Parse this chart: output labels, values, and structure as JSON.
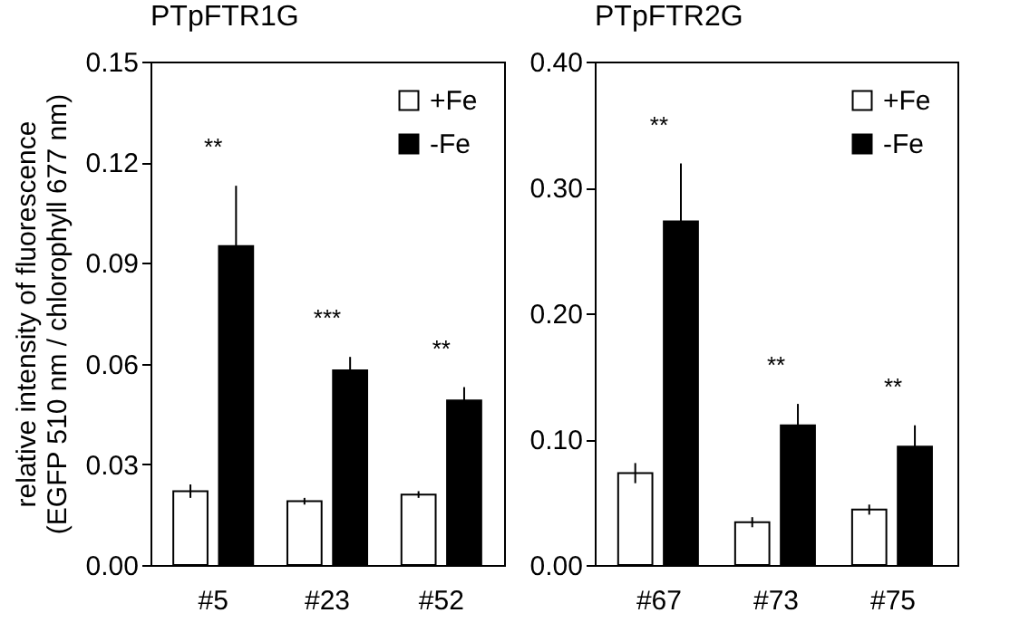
{
  "chart_data": [
    {
      "type": "bar",
      "title": "PTpFTR1G",
      "ylabel": "relative intensity of fluorescence\n(EGFP 510 nm / chlorophyll 677 nm)",
      "categories": [
        "#5",
        "#23",
        "#52"
      ],
      "series": [
        {
          "name": "+Fe",
          "color": "#ffffff",
          "values": [
            0.022,
            0.019,
            0.021
          ],
          "errors": [
            0.002,
            0.001,
            0.001
          ]
        },
        {
          "name": "-Fe",
          "color": "#000000",
          "values": [
            0.095,
            0.058,
            0.049
          ],
          "errors": [
            0.018,
            0.004,
            0.004
          ]
        }
      ],
      "ylim": [
        0,
        0.15
      ],
      "yticks": [
        {
          "value": 0,
          "label": "0.00"
        },
        0.03,
        0.06,
        0.09,
        0.12,
        0.15
      ],
      "legend": "top right",
      "annotations": [
        "**",
        "***",
        "**"
      ]
    },
    {
      "type": "bar",
      "title": "PTpFTR2G",
      "categories": [
        "#67",
        "#73",
        "#75"
      ],
      "series": [
        {
          "name": "+Fe",
          "color": "#ffffff",
          "values": [
            0.073,
            0.034,
            0.044
          ],
          "errors": [
            0.008,
            0.004,
            0.004
          ]
        },
        {
          "name": "-Fe",
          "color": "#000000",
          "values": [
            0.273,
            0.111,
            0.094
          ],
          "errors": [
            0.046,
            0.017,
            0.017
          ]
        }
      ],
      "ylim": [
        0,
        0.4
      ],
      "yticks": [
        {
          "value": 0,
          "label": "0.00"
        },
        {
          "value": 0.1,
          "label": "0.10"
        },
        {
          "value": 0.2,
          "label": "0.20"
        },
        {
          "value": 0.3,
          "label": "0.30"
        },
        {
          "value": 0.4,
          "label": "0.40"
        }
      ],
      "legend": "top right",
      "annotations": [
        "**",
        "**",
        "**"
      ]
    }
  ]
}
